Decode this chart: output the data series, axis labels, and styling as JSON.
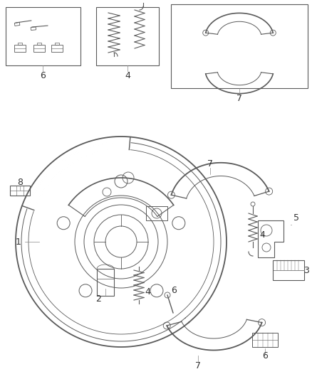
{
  "bg_color": "#ffffff",
  "lc": "#5a5a5a",
  "lc2": "#888888",
  "label_color": "#333333",
  "fig_w": 4.38,
  "fig_h": 5.33,
  "dpi": 100
}
